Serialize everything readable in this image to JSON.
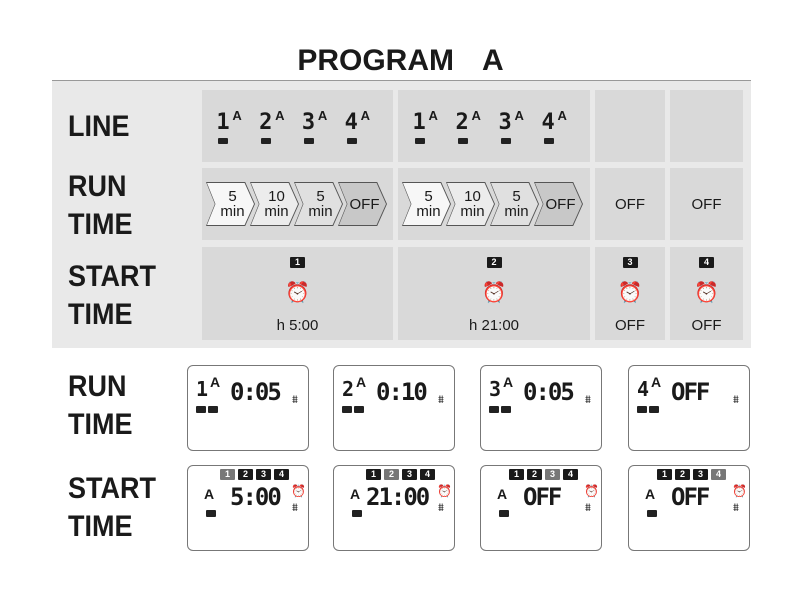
{
  "title": {
    "word": "PROGRAM",
    "program": "A"
  },
  "labels": {
    "line": "LINE",
    "run": "RUN",
    "time": "TIME",
    "start": "START"
  },
  "program_letter": "A",
  "lines": [
    "1",
    "2",
    "3",
    "4"
  ],
  "run_times": [
    {
      "items": [
        {
          "v": "5",
          "u": "min",
          "c": "#f7f7f7"
        },
        {
          "v": "10",
          "u": "min",
          "c": "#ececec"
        },
        {
          "v": "5",
          "u": "min",
          "c": "#e0e0e0"
        },
        {
          "v": "OFF",
          "u": "",
          "c": "#c8c8c8"
        }
      ]
    },
    {
      "items": [
        {
          "v": "5",
          "u": "min",
          "c": "#f7f7f7"
        },
        {
          "v": "10",
          "u": "min",
          "c": "#ececec"
        },
        {
          "v": "5",
          "u": "min",
          "c": "#e0e0e0"
        },
        {
          "v": "OFF",
          "u": "",
          "c": "#c8c8c8"
        }
      ]
    },
    {
      "off": "OFF"
    },
    {
      "off": "OFF"
    }
  ],
  "start_times": [
    {
      "n": "1",
      "value": "h 5:00"
    },
    {
      "n": "2",
      "value": "h 21:00"
    },
    {
      "n": "3",
      "value": "OFF"
    },
    {
      "n": "4",
      "value": "OFF"
    }
  ],
  "lcd_run": [
    {
      "line": "1",
      "display": "0:05"
    },
    {
      "line": "2",
      "display": "0:10"
    },
    {
      "line": "3",
      "display": "0:05"
    },
    {
      "line": "4",
      "display": "OFF"
    }
  ],
  "lcd_start": [
    {
      "active": 1,
      "display": "5:00"
    },
    {
      "active": 2,
      "display": "21:00"
    },
    {
      "active": 3,
      "display": "OFF"
    },
    {
      "active": 4,
      "display": "OFF"
    }
  ],
  "icons": {
    "clock": "alarm-clock-icon",
    "sprinkler": "sprinkler-icon"
  }
}
